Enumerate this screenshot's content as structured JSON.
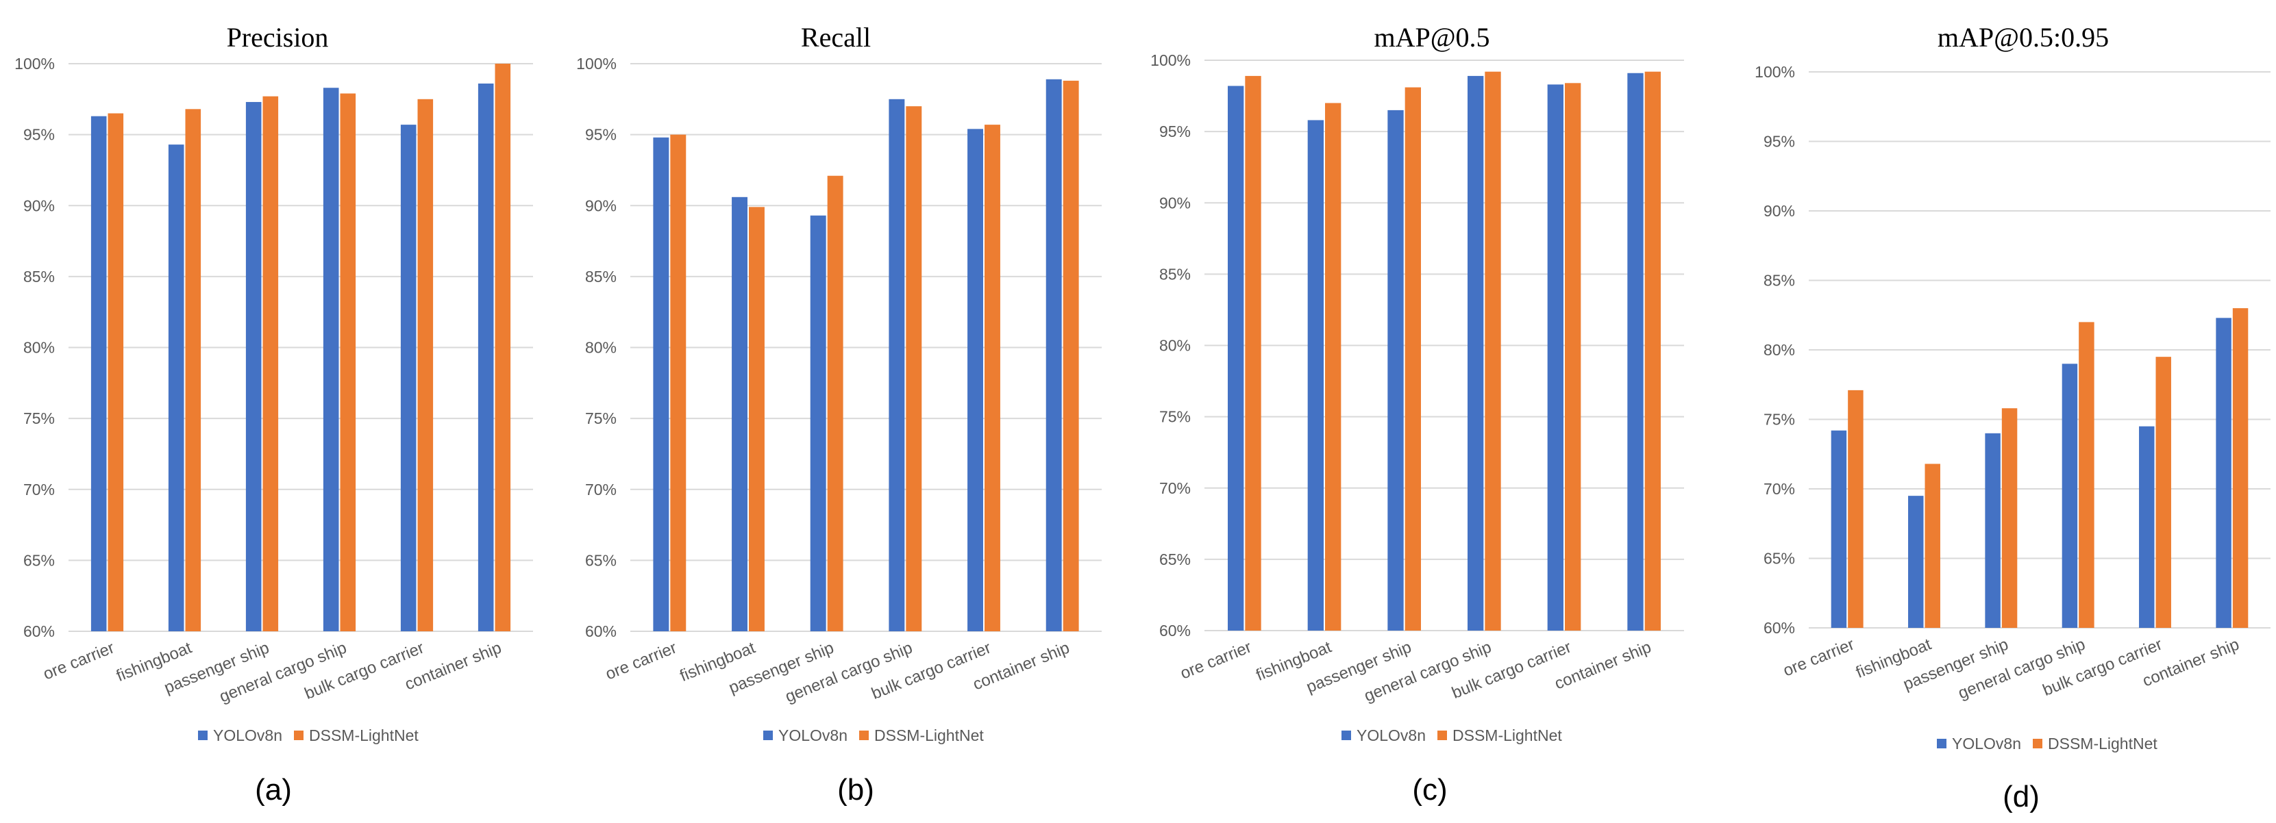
{
  "colors": {
    "series1": "#4472C4",
    "series2": "#ED7D31"
  },
  "chart_data": [
    {
      "type": "bar",
      "title": "Precision",
      "panel_label": "(a)",
      "categories": [
        "ore carrier",
        "fishingboat",
        "passenger ship",
        "general cargo ship",
        "bulk cargo carrier",
        "container ship"
      ],
      "series": [
        {
          "name": "YOLOv8n",
          "values": [
            96.3,
            94.3,
            97.3,
            98.3,
            95.7,
            98.6
          ]
        },
        {
          "name": "DSSM-LightNet",
          "values": [
            96.5,
            96.8,
            97.7,
            97.9,
            97.5,
            100.0
          ]
        }
      ],
      "ylim": [
        60,
        100
      ],
      "yticks": [
        "60%",
        "65%",
        "70%",
        "75%",
        "80%",
        "85%",
        "90%",
        "95%",
        "100%"
      ],
      "xlabel": "",
      "ylabel": "",
      "grid": true,
      "legend": "bottom"
    },
    {
      "type": "bar",
      "title": "Recall",
      "panel_label": "(b)",
      "categories": [
        "ore carrier",
        "fishingboat",
        "passenger ship",
        "general cargo ship",
        "bulk cargo carrier",
        "container ship"
      ],
      "series": [
        {
          "name": "YOLOv8n",
          "values": [
            94.8,
            90.6,
            89.3,
            97.5,
            95.4,
            98.9
          ]
        },
        {
          "name": "DSSM-LightNet",
          "values": [
            95.0,
            89.9,
            92.1,
            97.0,
            95.7,
            98.8
          ]
        }
      ],
      "ylim": [
        60,
        100
      ],
      "yticks": [
        "60%",
        "65%",
        "70%",
        "75%",
        "80%",
        "85%",
        "90%",
        "95%",
        "100%"
      ],
      "xlabel": "",
      "ylabel": "",
      "grid": true,
      "legend": "bottom"
    },
    {
      "type": "bar",
      "title": "mAP@0.5",
      "panel_label": "(c)",
      "categories": [
        "ore carrier",
        "fishingboat",
        "passenger ship",
        "general cargo ship",
        "bulk cargo carrier",
        "container ship"
      ],
      "series": [
        {
          "name": "YOLOv8n",
          "values": [
            98.2,
            95.8,
            96.5,
            98.9,
            98.3,
            99.1
          ]
        },
        {
          "name": "DSSM-LightNet",
          "values": [
            98.9,
            97.0,
            98.1,
            99.2,
            98.4,
            99.2
          ]
        }
      ],
      "ylim": [
        60,
        100
      ],
      "yticks": [
        "60%",
        "65%",
        "70%",
        "75%",
        "80%",
        "85%",
        "90%",
        "95%",
        "100%"
      ],
      "xlabel": "",
      "ylabel": "",
      "grid": true,
      "legend": "bottom"
    },
    {
      "type": "bar",
      "title": "mAP@0.5:0.95",
      "panel_label": "(d)",
      "categories": [
        "ore carrier",
        "fishingboat",
        "passenger ship",
        "general cargo ship",
        "bulk cargo carrier",
        "container ship"
      ],
      "series": [
        {
          "name": "YOLOv8n",
          "values": [
            74.2,
            69.5,
            74.0,
            79.0,
            74.5,
            82.3
          ]
        },
        {
          "name": "DSSM-LightNet",
          "values": [
            77.1,
            71.8,
            75.8,
            82.0,
            79.5,
            83.0
          ]
        }
      ],
      "ylim": [
        60,
        100
      ],
      "yticks": [
        "60%",
        "65%",
        "70%",
        "75%",
        "80%",
        "85%",
        "90%",
        "95%",
        "100%"
      ],
      "xlabel": "",
      "ylabel": "",
      "grid": true,
      "legend": "bottom"
    }
  ]
}
